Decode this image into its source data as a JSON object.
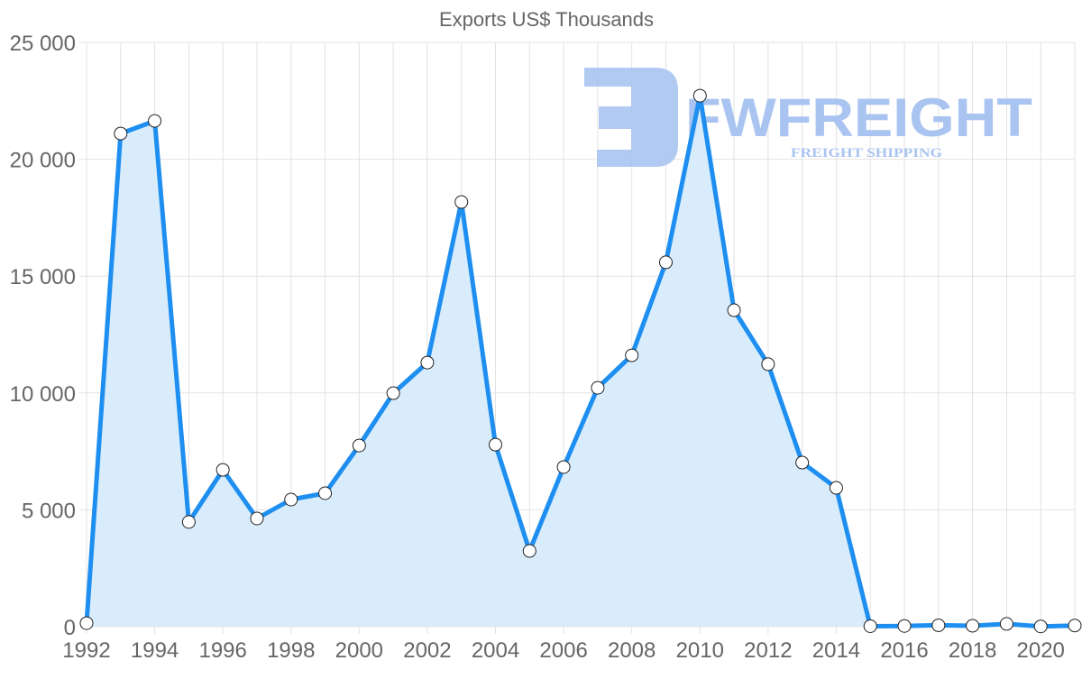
{
  "chart_data": {
    "type": "line",
    "title": "Exports US$ Thousands",
    "xlabel": "",
    "ylabel": "",
    "fill": true,
    "grid": true,
    "legend": "none",
    "ylim": [
      0,
      25000
    ],
    "yticks": [
      "0",
      "5 000",
      "10 000",
      "15 000",
      "20 000",
      "25 000"
    ],
    "xticks": [
      "1992",
      "1994",
      "1996",
      "1998",
      "2000",
      "2002",
      "2004",
      "2006",
      "2008",
      "2010",
      "2012",
      "2014",
      "2016",
      "2018",
      "2020"
    ],
    "x": [
      1992,
      1993,
      1994,
      1995,
      1996,
      1997,
      1998,
      1999,
      2000,
      2001,
      2002,
      2003,
      2004,
      2005,
      2006,
      2007,
      2008,
      2009,
      2010,
      2011,
      2012,
      2013,
      2014,
      2015,
      2016,
      2017,
      2018,
      2019,
      2020,
      2021
    ],
    "series": [
      {
        "name": "Exports US$ Thousands",
        "color": "#1e8ff0",
        "fill_color": "#d6ebfc",
        "values": [
          150,
          21100,
          21640,
          4480,
          6710,
          4630,
          5440,
          5710,
          7750,
          9990,
          11300,
          18170,
          7790,
          3240,
          6830,
          10220,
          11610,
          15590,
          22720,
          13540,
          11230,
          7020,
          5940,
          20,
          30,
          60,
          40,
          120,
          10,
          50
        ]
      }
    ]
  },
  "watermark": {
    "brand": "FWFREIGHT",
    "tagline": "FREIGHT SHIPPING",
    "color": "#a9c4f0"
  }
}
